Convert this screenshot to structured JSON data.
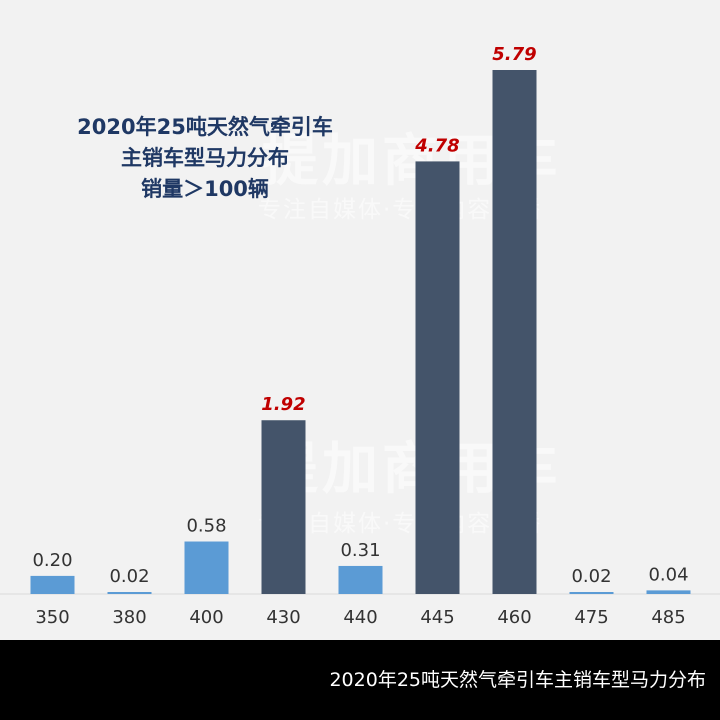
{
  "chart_data": {
    "type": "bar",
    "title_lines": [
      "2020年25吨天然气牵引车",
      "主销车型马力分布",
      "销量＞100辆"
    ],
    "categories": [
      "350",
      "380",
      "400",
      "430",
      "440",
      "445",
      "460",
      "475",
      "485"
    ],
    "values": [
      0.2,
      0.02,
      0.58,
      1.92,
      0.31,
      4.78,
      5.79,
      0.02,
      0.04
    ],
    "value_labels": [
      "0.20",
      "0.02",
      "0.58",
      "1.92",
      "0.31",
      "4.78",
      "5.79",
      "0.02",
      "0.04"
    ],
    "highlighted": [
      false,
      false,
      false,
      true,
      false,
      true,
      true,
      false,
      false
    ],
    "ylim": [
      0,
      5.79
    ],
    "grid": false,
    "legend": "none",
    "colors": {
      "normal_bar": "#5b9bd5",
      "highlight_bar": "#44546a",
      "normal_label": "#333333",
      "highlight_label": "#c00000"
    }
  },
  "watermark": {
    "brand": "提加商用车",
    "slogan": "专注自媒体·专注内容传播"
  },
  "caption": "2020年25吨天然气牵引车主销车型马力分布"
}
